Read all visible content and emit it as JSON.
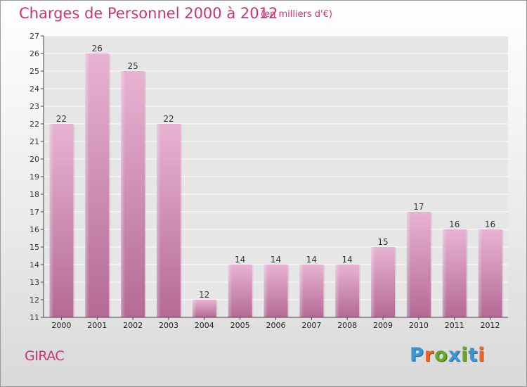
{
  "header": {
    "title": "Charges de Personnel 2000 à 2012",
    "subtitle": "(en milliers d'€)"
  },
  "footer": {
    "place": "GIRAC",
    "brand": "Proxiti",
    "brand_colors": [
      "#3399dd",
      "#ee6622",
      "#66aa22",
      "#3399dd",
      "#66aa22",
      "#3399dd",
      "#ee6622"
    ]
  },
  "chart_data": {
    "type": "bar",
    "title": "Charges de Personnel 2000 à 2012",
    "subtitle": "(en milliers d'€)",
    "categories": [
      "2000",
      "2001",
      "2002",
      "2003",
      "2004",
      "2005",
      "2006",
      "2007",
      "2008",
      "2009",
      "2010",
      "2011",
      "2012"
    ],
    "values": [
      22,
      26,
      25,
      22,
      12,
      14,
      14,
      14,
      14,
      15,
      17,
      16,
      16
    ],
    "ylim": [
      11,
      27
    ],
    "yticks": [
      11,
      12,
      13,
      14,
      15,
      16,
      17,
      18,
      19,
      20,
      21,
      22,
      23,
      24,
      25,
      26,
      27
    ],
    "grid": true,
    "bar_color": "#d98fba",
    "bar_color_light": "#e8b3d3",
    "bar_color_dark": "#b46a95"
  }
}
